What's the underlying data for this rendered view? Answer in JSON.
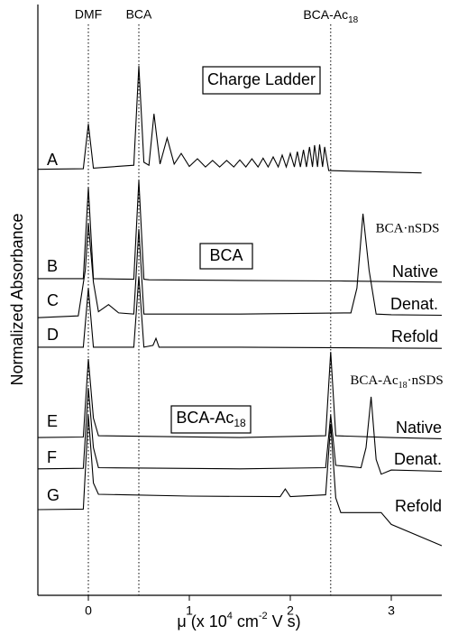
{
  "chart_data": {
    "type": "line",
    "y_label": "Normalized Absorbance",
    "x_label_parts": [
      "μ (x 10",
      "4",
      " cm",
      "-2",
      " V s)"
    ],
    "xlim": [
      -0.5,
      3.5
    ],
    "xticks": [
      0,
      1,
      2,
      3
    ],
    "ylim": [
      0,
      100
    ],
    "ref_lines": [
      {
        "x": 0,
        "label": "DMF"
      },
      {
        "x": 0.5,
        "label": "BCA"
      },
      {
        "x": 2.4,
        "label_parts": [
          "BCA-Ac",
          "18"
        ]
      }
    ],
    "boxes": [
      "Charge Ladder",
      "BCA",
      [
        "BCA-Ac",
        "18"
      ]
    ],
    "annotations": [
      "BCA·nSDS",
      [
        "BCA-Ac",
        "18",
        "·nSDS"
      ]
    ],
    "conditions": [
      "Native",
      "Denat.",
      "Refold",
      "Native",
      "Denat.",
      "Refold"
    ],
    "series": [
      {
        "name": "A",
        "color": "#000000",
        "x": [
          -0.5,
          -0.05,
          0,
          0.05,
          0.45,
          0.5,
          0.55,
          0.6,
          0.65,
          0.71,
          0.78,
          0.85,
          0.92,
          1.0,
          1.08,
          1.16,
          1.23,
          1.3,
          1.37,
          1.44,
          1.5,
          1.56,
          1.62,
          1.68,
          1.73,
          1.78,
          1.83,
          1.88,
          1.92,
          1.96,
          2.0,
          2.04,
          2.07,
          2.1,
          2.13,
          2.16,
          2.19,
          2.22,
          2.24,
          2.27,
          2.29,
          2.32,
          2.34,
          2.38,
          3.3
        ],
        "values": [
          72.1,
          72.2,
          79.8,
          72.3,
          72.8,
          89.6,
          73.3,
          72.8,
          81.5,
          73.0,
          77.4,
          73.0,
          74.8,
          72.6,
          73.9,
          72.5,
          73.6,
          72.5,
          73.6,
          72.5,
          73.7,
          72.5,
          73.9,
          72.5,
          74.0,
          72.5,
          74.2,
          72.5,
          74.5,
          72.5,
          74.8,
          72.5,
          75.1,
          72.5,
          75.4,
          72.5,
          75.9,
          72.5,
          76.2,
          72.5,
          76.3,
          72.5,
          75.9,
          71.9,
          71.5
        ]
      },
      {
        "name": "B",
        "color": "#000000",
        "x": [
          -0.5,
          -0.05,
          0,
          0.05,
          0.45,
          0.5,
          0.55,
          0.6,
          1.5,
          2.5,
          3.5
        ],
        "values": [
          53.6,
          53.6,
          69.0,
          53.6,
          53.5,
          70.2,
          53.5,
          53.4,
          53.3,
          53.2,
          53.0
        ]
      },
      {
        "name": "C",
        "color": "#000000",
        "x": [
          -0.5,
          -0.1,
          -0.03,
          0,
          0.05,
          0.1,
          0.2,
          0.3,
          0.45,
          0.5,
          0.55,
          1.5,
          2.6,
          2.66,
          2.72,
          2.78,
          2.85,
          3.0,
          3.5
        ],
        "values": [
          47.0,
          47.3,
          55.0,
          63.0,
          53.0,
          48.0,
          49.2,
          47.8,
          47.6,
          62.0,
          47.6,
          47.6,
          47.8,
          52.0,
          64.6,
          55.0,
          47.6,
          47.5,
          47.4
        ]
      },
      {
        "name": "D",
        "color": "#000000",
        "x": [
          -0.5,
          -0.05,
          0,
          0.05,
          0.45,
          0.5,
          0.55,
          0.64,
          0.67,
          0.7,
          1.5,
          3.5
        ],
        "values": [
          42.0,
          42.0,
          52.0,
          42.0,
          42.0,
          54.0,
          42.0,
          42.3,
          43.5,
          42.0,
          42.0,
          41.8
        ]
      },
      {
        "name": "E",
        "color": "#000000",
        "x": [
          -0.5,
          -0.05,
          0,
          0.05,
          0.1,
          1.5,
          2.35,
          2.4,
          2.45,
          3.0,
          3.5
        ],
        "values": [
          26.7,
          26.8,
          40.0,
          30.0,
          27.0,
          26.7,
          27.0,
          41.2,
          27.0,
          26.7,
          26.5
        ]
      },
      {
        "name": "F",
        "color": "#000000",
        "x": [
          -0.5,
          -0.05,
          0,
          0.05,
          0.1,
          1.5,
          2.35,
          2.4,
          2.45,
          2.7,
          2.75,
          2.8,
          2.85,
          2.9,
          3.0,
          3.5
        ],
        "values": [
          21.4,
          21.5,
          35.1,
          25.0,
          21.6,
          21.4,
          21.6,
          30.5,
          22.0,
          21.6,
          25.0,
          33.6,
          23.0,
          20.5,
          21.2,
          21.0
        ]
      },
      {
        "name": "G",
        "color": "#000000",
        "x": [
          -0.5,
          -0.05,
          0,
          0.05,
          0.1,
          1.0,
          1.9,
          1.95,
          2.0,
          2.35,
          2.4,
          2.45,
          2.5,
          2.9,
          3.0,
          3.5
        ],
        "values": [
          14.5,
          14.6,
          30.5,
          19.0,
          17.1,
          16.8,
          16.7,
          18.0,
          16.7,
          17.0,
          29.0,
          16.5,
          14.0,
          14.0,
          12.0,
          8.4
        ]
      }
    ]
  }
}
